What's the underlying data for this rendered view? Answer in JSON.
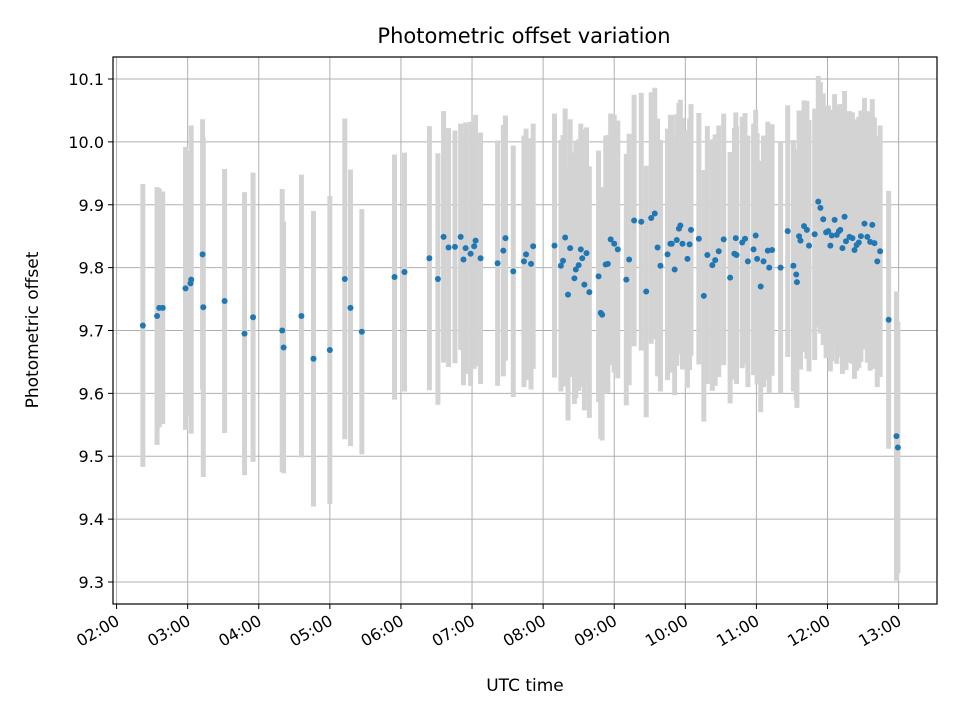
{
  "chart_data": {
    "type": "scatter",
    "title": "Photometric offset variation",
    "xlabel": "UTC time",
    "ylabel": "Photometric offset",
    "x_unit": "hours UTC",
    "xlim": [
      1.95,
      13.54
    ],
    "ylim": [
      9.265,
      10.135
    ],
    "x_ticks": [
      2,
      3,
      4,
      5,
      6,
      7,
      8,
      9,
      10,
      11,
      12,
      13
    ],
    "x_tick_labels": [
      "02:00",
      "03:00",
      "04:00",
      "05:00",
      "06:00",
      "07:00",
      "08:00",
      "09:00",
      "10:00",
      "11:00",
      "12:00",
      "13:00"
    ],
    "y_ticks": [
      9.3,
      9.4,
      9.5,
      9.6,
      9.7,
      9.8,
      9.9,
      10.0,
      10.1
    ],
    "y_tick_labels": [
      "9.3",
      "9.4",
      "9.5",
      "9.6",
      "9.7",
      "9.8",
      "9.9",
      "10.0",
      "10.1"
    ],
    "grid": true,
    "colors": {
      "points": "#1f77b4",
      "errorbars": "#d3d3d3",
      "grid": "#b0b0b0",
      "frame": "#000000"
    },
    "series": [
      {
        "points": [
          [
            2.37,
            9.708,
            0.225
          ],
          [
            2.57,
            9.723,
            0.205
          ],
          [
            2.6,
            9.736,
            0.19
          ],
          [
            2.65,
            9.736,
            0.185
          ],
          [
            2.97,
            9.767,
            0.225
          ],
          [
            3.04,
            9.775,
            0.21
          ],
          [
            3.05,
            9.781,
            0.245
          ],
          [
            3.21,
            9.821,
            0.215
          ],
          [
            3.22,
            9.737,
            0.27
          ],
          [
            3.52,
            9.747,
            0.21
          ],
          [
            3.8,
            9.695,
            0.225
          ],
          [
            3.92,
            9.721,
            0.23
          ],
          [
            4.33,
            9.7,
            0.225
          ],
          [
            4.35,
            9.673,
            0.2
          ],
          [
            4.6,
            9.723,
            0.225
          ],
          [
            4.77,
            9.655,
            0.235
          ],
          [
            5.0,
            9.669,
            0.245
          ],
          [
            5.21,
            9.782,
            0.255
          ],
          [
            5.29,
            9.736,
            0.22
          ],
          [
            5.45,
            9.698,
            0.195
          ],
          [
            5.91,
            9.785,
            0.195
          ],
          [
            6.05,
            9.793,
            0.19
          ],
          [
            6.4,
            9.815,
            0.21
          ],
          [
            6.52,
            9.782,
            0.2
          ],
          [
            6.6,
            9.849,
            0.2
          ],
          [
            6.67,
            9.832,
            0.19
          ],
          [
            6.76,
            9.833,
            0.185
          ],
          [
            6.84,
            9.849,
            0.18
          ],
          [
            6.88,
            9.813,
            0.2
          ],
          [
            6.91,
            9.831,
            0.2
          ],
          [
            6.98,
            9.822,
            0.21
          ],
          [
            7.03,
            9.834,
            0.195
          ],
          [
            7.05,
            9.843,
            0.2
          ],
          [
            7.12,
            9.815,
            0.2
          ],
          [
            7.36,
            9.807,
            0.195
          ],
          [
            7.44,
            9.827,
            0.2
          ],
          [
            7.47,
            9.847,
            0.195
          ],
          [
            7.58,
            9.794,
            0.2
          ],
          [
            7.73,
            9.81,
            0.2
          ],
          [
            7.76,
            9.821,
            0.2
          ],
          [
            7.83,
            9.806,
            0.2
          ],
          [
            7.86,
            9.834,
            0.195
          ],
          [
            8.16,
            9.835,
            0.21
          ],
          [
            8.25,
            9.803,
            0.2
          ],
          [
            8.28,
            9.811,
            0.2
          ],
          [
            8.31,
            9.848,
            0.205
          ],
          [
            8.35,
            9.757,
            0.2
          ],
          [
            8.38,
            9.831,
            0.205
          ],
          [
            8.44,
            9.783,
            0.2
          ],
          [
            8.46,
            9.797,
            0.205
          ],
          [
            8.5,
            9.804,
            0.2
          ],
          [
            8.53,
            9.829,
            0.2
          ],
          [
            8.55,
            9.815,
            0.205
          ],
          [
            8.58,
            9.773,
            0.2
          ],
          [
            8.61,
            9.823,
            0.2
          ],
          [
            8.65,
            9.761,
            0.2
          ],
          [
            8.78,
            9.786,
            0.2
          ],
          [
            8.81,
            9.728,
            0.2
          ],
          [
            8.83,
            9.725,
            0.2
          ],
          [
            8.88,
            9.805,
            0.205
          ],
          [
            8.91,
            9.806,
            0.205
          ],
          [
            8.95,
            9.845,
            0.2
          ],
          [
            9.0,
            9.838,
            0.205
          ],
          [
            9.05,
            9.829,
            0.205
          ],
          [
            9.17,
            9.781,
            0.2
          ],
          [
            9.21,
            9.813,
            0.2
          ],
          [
            9.28,
            9.875,
            0.2
          ],
          [
            9.38,
            9.873,
            0.205
          ],
          [
            9.45,
            9.762,
            0.2
          ],
          [
            9.52,
            9.879,
            0.2
          ],
          [
            9.57,
            9.886,
            0.2
          ],
          [
            9.61,
            9.832,
            0.205
          ],
          [
            9.65,
            9.803,
            0.2
          ],
          [
            9.75,
            9.821,
            0.2
          ],
          [
            9.79,
            9.838,
            0.205
          ],
          [
            9.81,
            9.838,
            0.205
          ],
          [
            9.85,
            9.797,
            0.2
          ],
          [
            9.88,
            9.844,
            0.2
          ],
          [
            9.91,
            9.862,
            0.2
          ],
          [
            9.93,
            9.867,
            0.2
          ],
          [
            9.96,
            9.838,
            0.2
          ],
          [
            10.03,
            9.814,
            0.205
          ],
          [
            10.06,
            9.837,
            0.2
          ],
          [
            10.08,
            9.86,
            0.2
          ],
          [
            10.19,
            9.846,
            0.2
          ],
          [
            10.26,
            9.755,
            0.2
          ],
          [
            10.31,
            9.82,
            0.205
          ],
          [
            10.38,
            9.804,
            0.2
          ],
          [
            10.42,
            9.812,
            0.2
          ],
          [
            10.47,
            9.826,
            0.2
          ],
          [
            10.54,
            9.845,
            0.2
          ],
          [
            10.63,
            9.784,
            0.2
          ],
          [
            10.69,
            9.822,
            0.2
          ],
          [
            10.71,
            9.847,
            0.2
          ],
          [
            10.72,
            9.82,
            0.205
          ],
          [
            10.8,
            9.84,
            0.2
          ],
          [
            10.84,
            9.846,
            0.2
          ],
          [
            10.88,
            9.81,
            0.2
          ],
          [
            10.96,
            9.829,
            0.2
          ],
          [
            10.99,
            9.851,
            0.2
          ],
          [
            11.01,
            9.814,
            0.2
          ],
          [
            11.06,
            9.77,
            0.2
          ],
          [
            11.1,
            9.81,
            0.2
          ],
          [
            11.16,
            9.827,
            0.205
          ],
          [
            11.18,
            9.8,
            0.2
          ],
          [
            11.22,
            9.828,
            0.2
          ],
          [
            11.34,
            9.8,
            0.2
          ],
          [
            11.44,
            9.858,
            0.2
          ],
          [
            11.52,
            9.803,
            0.2
          ],
          [
            11.56,
            9.789,
            0.2
          ],
          [
            11.57,
            9.777,
            0.2
          ],
          [
            11.6,
            9.85,
            0.2
          ],
          [
            11.62,
            9.843,
            0.205
          ],
          [
            11.67,
            9.866,
            0.2
          ],
          [
            11.71,
            9.86,
            0.205
          ],
          [
            11.74,
            9.835,
            0.2
          ],
          [
            11.82,
            9.853,
            0.2
          ],
          [
            11.87,
            9.905,
            0.2
          ],
          [
            11.9,
            9.895,
            0.2
          ],
          [
            11.94,
            9.877,
            0.2
          ],
          [
            11.98,
            9.856,
            0.2
          ],
          [
            12.01,
            9.858,
            0.2
          ],
          [
            12.04,
            9.835,
            0.2
          ],
          [
            12.06,
            9.851,
            0.2
          ],
          [
            12.1,
            9.876,
            0.2
          ],
          [
            12.13,
            9.852,
            0.205
          ],
          [
            12.16,
            9.858,
            0.2
          ],
          [
            12.18,
            9.86,
            0.2
          ],
          [
            12.21,
            9.831,
            0.2
          ],
          [
            12.24,
            9.881,
            0.2
          ],
          [
            12.26,
            9.842,
            0.205
          ],
          [
            12.31,
            9.849,
            0.2
          ],
          [
            12.35,
            9.847,
            0.2
          ],
          [
            12.38,
            9.828,
            0.205
          ],
          [
            12.41,
            9.836,
            0.2
          ],
          [
            12.44,
            9.84,
            0.2
          ],
          [
            12.47,
            9.85,
            0.2
          ],
          [
            12.52,
            9.87,
            0.2
          ],
          [
            12.56,
            9.849,
            0.2
          ],
          [
            12.6,
            9.841,
            0.205
          ],
          [
            12.63,
            9.868,
            0.2
          ],
          [
            12.66,
            9.839,
            0.2
          ],
          [
            12.7,
            9.81,
            0.2
          ],
          [
            12.74,
            9.826,
            0.2
          ],
          [
            12.86,
            9.717,
            0.205
          ],
          [
            12.97,
            9.532,
            0.23
          ],
          [
            12.99,
            9.514,
            0.2
          ]
        ]
      }
    ]
  }
}
